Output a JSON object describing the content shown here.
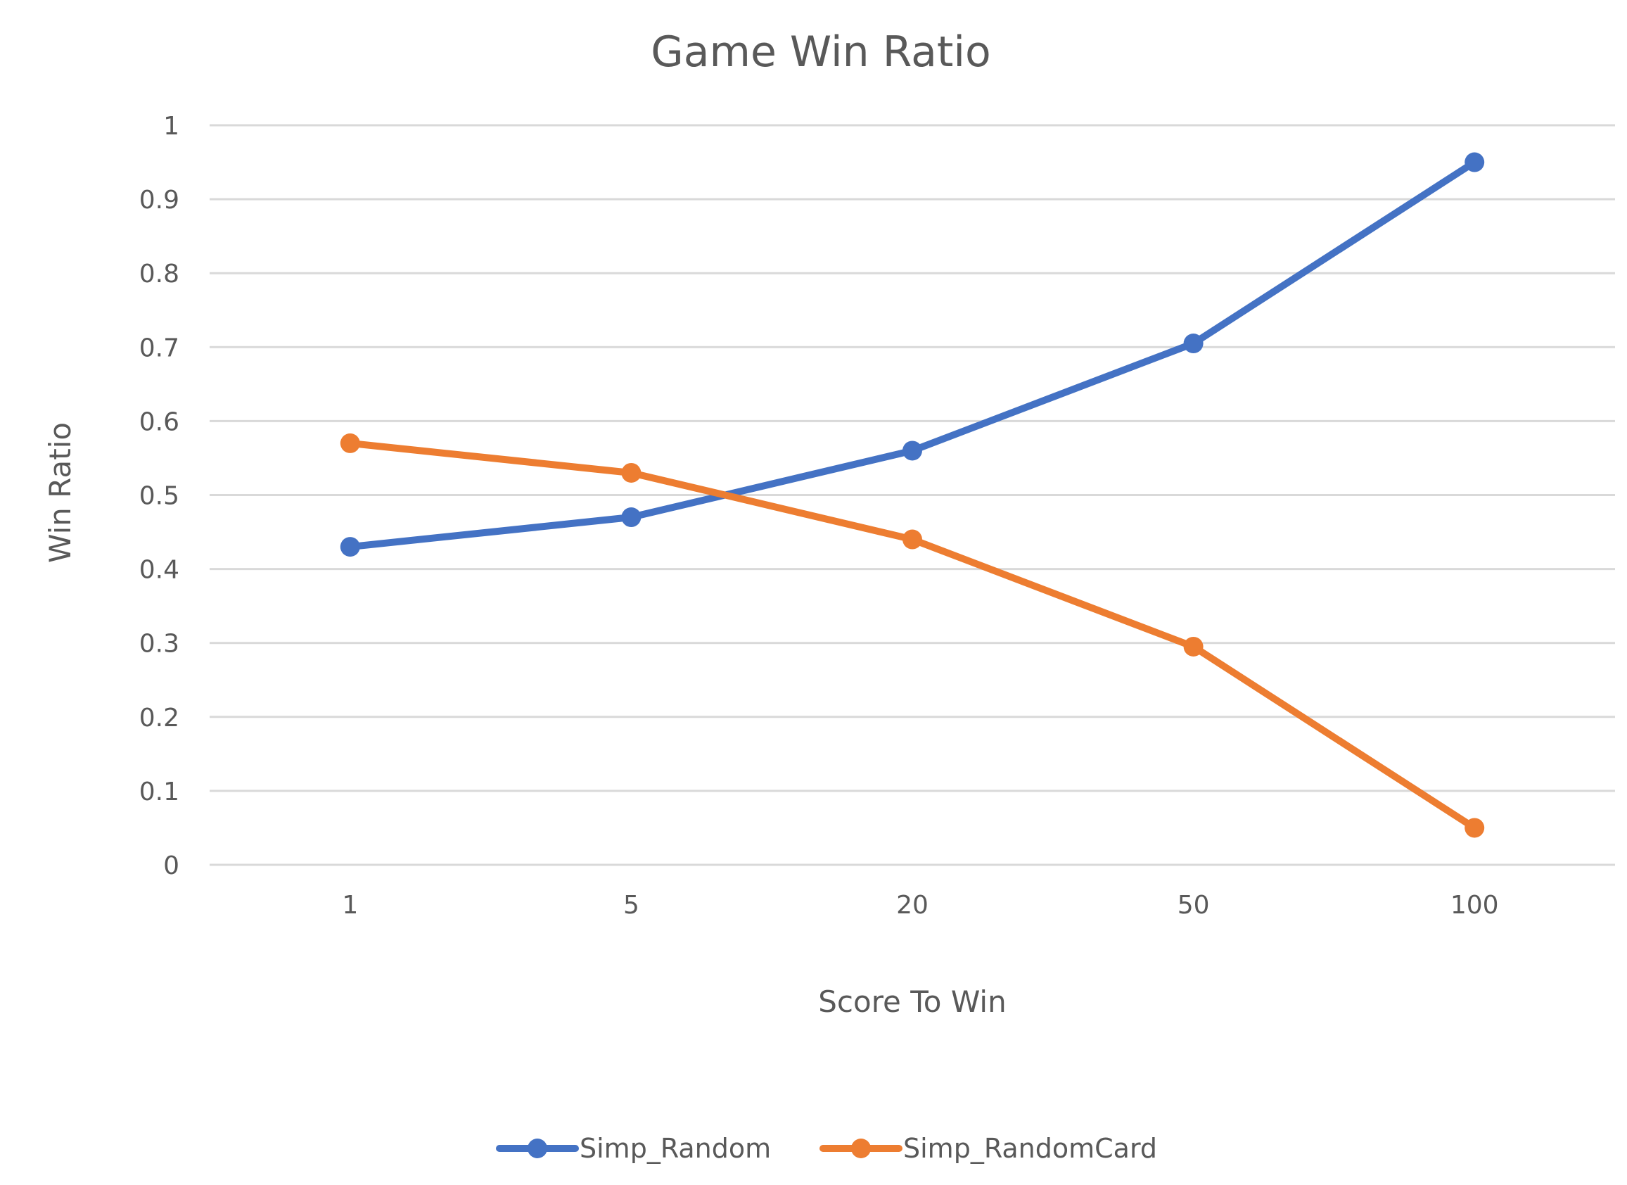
{
  "chart_data": {
    "type": "line",
    "title": "Game Win Ratio",
    "xlabel": "Score To Win",
    "ylabel": "Win Ratio",
    "categories": [
      "1",
      "5",
      "20",
      "50",
      "100"
    ],
    "ylim": [
      0,
      1
    ],
    "yticks": [
      "0",
      "0.1",
      "0.2",
      "0.3",
      "0.4",
      "0.5",
      "0.6",
      "0.7",
      "0.8",
      "0.9",
      "1"
    ],
    "grid": true,
    "legend_position": "bottom",
    "series": [
      {
        "name": "Simp_Random",
        "color": "#4472c4",
        "values": [
          0.43,
          0.47,
          0.56,
          0.705,
          0.95
        ]
      },
      {
        "name": "Simp_RandomCard",
        "color": "#ed7d31",
        "values": [
          0.57,
          0.53,
          0.44,
          0.295,
          0.05
        ]
      }
    ]
  }
}
